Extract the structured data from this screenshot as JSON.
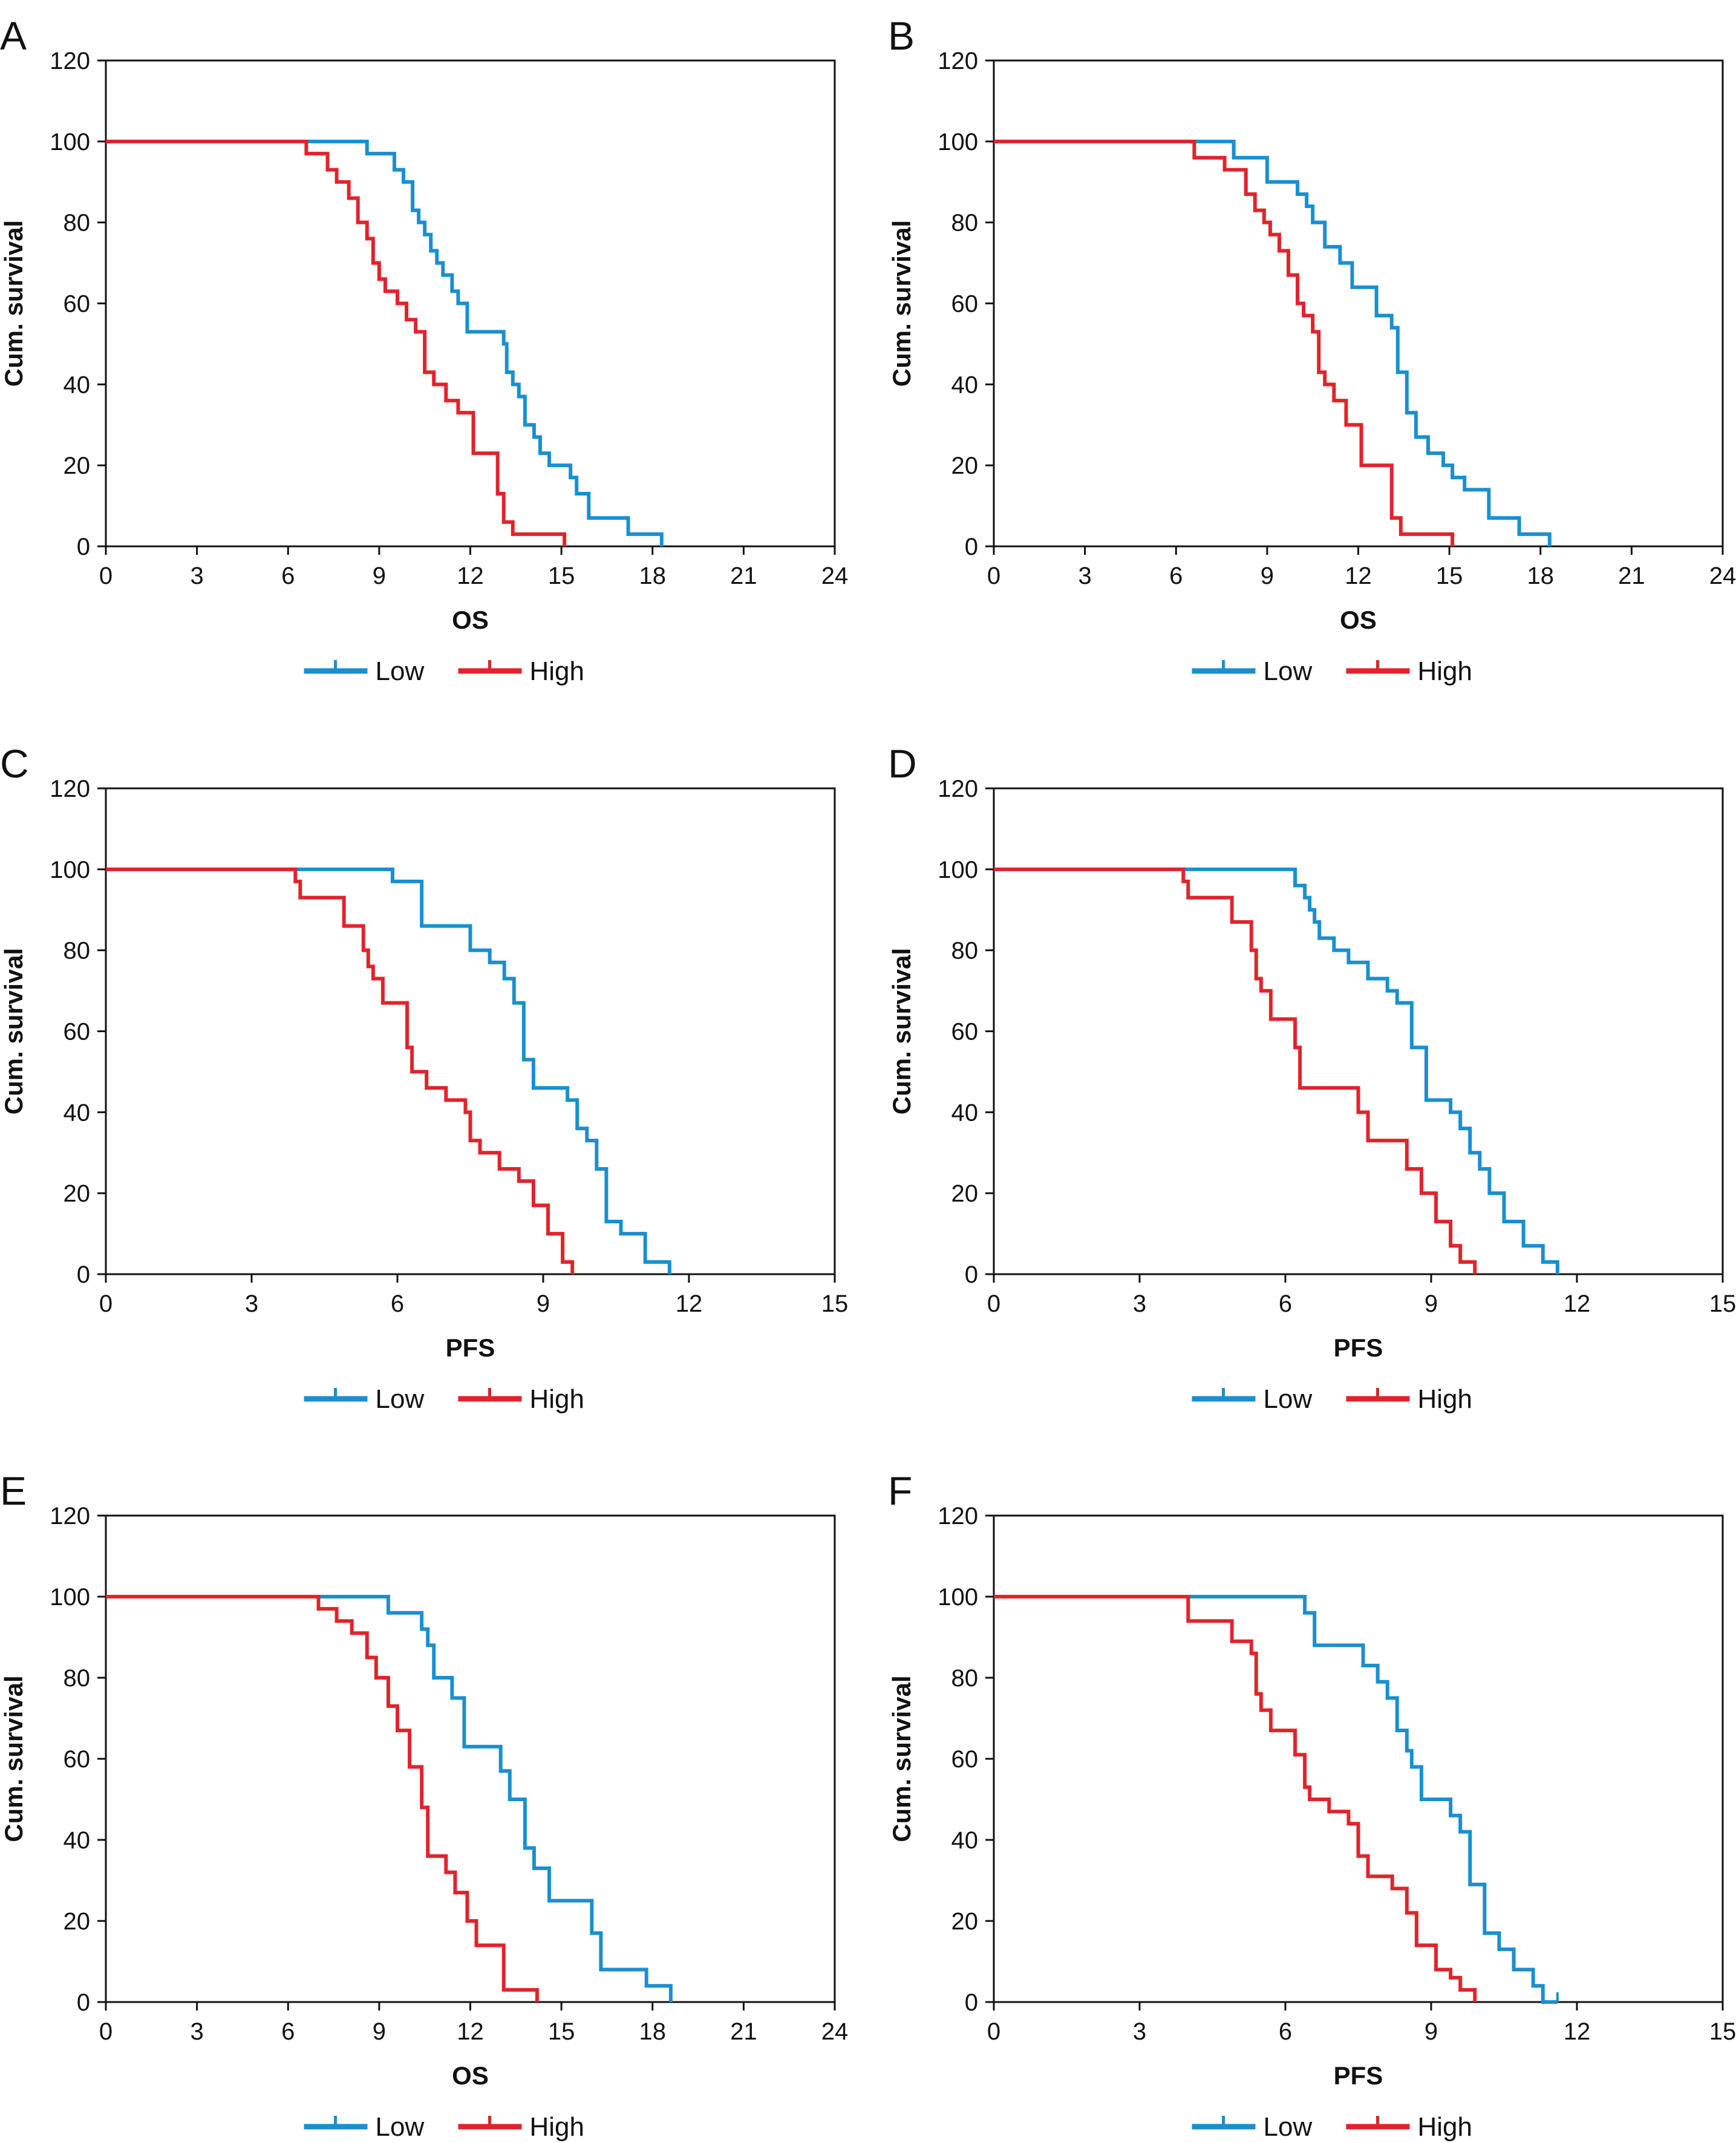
{
  "colors": {
    "low": "#1a8fd0",
    "high": "#e0242b",
    "axis": "#111111"
  },
  "chart_data": [
    {
      "panel": "A",
      "type": "line",
      "xlabel": "OS",
      "ylabel": "Cum. survival",
      "xlim": [
        0,
        24
      ],
      "ylim": [
        0,
        120
      ],
      "x_ticks": [
        0,
        3,
        6,
        9,
        12,
        15,
        18,
        21,
        24
      ],
      "y_ticks": [
        0,
        20,
        40,
        60,
        80,
        100,
        120
      ],
      "legend": "bottom-center",
      "series": [
        {
          "name": "Low",
          "color": "#1a8fd0",
          "x": [
            0,
            8.4,
            8.6,
            9.5,
            9.8,
            10.1,
            10.3,
            10.5,
            10.7,
            10.9,
            11.1,
            11.4,
            11.6,
            11.9,
            13.1,
            13.2,
            13.4,
            13.6,
            13.8,
            14.1,
            14.3,
            14.6,
            15.3,
            15.5,
            15.9,
            17.2,
            18.3
          ],
          "y": [
            100,
            100,
            97,
            93,
            90,
            83,
            80,
            77,
            73,
            70,
            67,
            63,
            60,
            53,
            50,
            43,
            40,
            37,
            30,
            27,
            23,
            20,
            17,
            13,
            7,
            3,
            0
          ]
        },
        {
          "name": "High",
          "color": "#e0242b",
          "x": [
            0,
            6.3,
            6.6,
            7.3,
            7.6,
            8.0,
            8.3,
            8.6,
            8.8,
            9.0,
            9.2,
            9.6,
            9.9,
            10.2,
            10.5,
            10.8,
            11.2,
            11.6,
            12.1,
            12.9,
            13.1,
            13.4,
            15.1
          ],
          "y": [
            100,
            100,
            97,
            93,
            90,
            86,
            80,
            76,
            70,
            66,
            63,
            60,
            56,
            53,
            43,
            40,
            36,
            33,
            23,
            13,
            6,
            3,
            0
          ]
        }
      ]
    },
    {
      "panel": "B",
      "type": "line",
      "xlabel": "OS",
      "ylabel": "Cum. survival",
      "xlim": [
        0,
        24
      ],
      "ylim": [
        0,
        120
      ],
      "x_ticks": [
        0,
        3,
        6,
        9,
        12,
        15,
        18,
        21,
        24
      ],
      "y_ticks": [
        0,
        20,
        40,
        60,
        80,
        100,
        120
      ],
      "legend": "bottom-center",
      "series": [
        {
          "name": "Low",
          "color": "#1a8fd0",
          "x": [
            0,
            7.6,
            7.9,
            9.0,
            9.3,
            10.0,
            10.3,
            10.5,
            10.9,
            11.4,
            11.8,
            12.6,
            13.1,
            13.3,
            13.6,
            13.9,
            14.3,
            14.8,
            15.1,
            15.5,
            16.3,
            17.3,
            18.3
          ],
          "y": [
            100,
            100,
            96,
            90,
            90,
            87,
            84,
            80,
            74,
            70,
            64,
            57,
            54,
            43,
            33,
            27,
            23,
            20,
            17,
            14,
            7,
            3,
            0
          ]
        },
        {
          "name": "High",
          "color": "#e0242b",
          "x": [
            0,
            6.3,
            6.6,
            7.6,
            8.3,
            8.6,
            8.9,
            9.1,
            9.4,
            9.7,
            10.0,
            10.2,
            10.5,
            10.7,
            10.9,
            11.2,
            11.6,
            12.1,
            13.1,
            13.4,
            15.1
          ],
          "y": [
            100,
            100,
            96,
            93,
            87,
            83,
            80,
            77,
            73,
            67,
            60,
            57,
            53,
            43,
            40,
            36,
            30,
            20,
            7,
            3,
            0
          ]
        }
      ]
    },
    {
      "panel": "C",
      "type": "line",
      "xlabel": "PFS",
      "ylabel": "Cum. survival",
      "xlim": [
        0,
        15
      ],
      "ylim": [
        0,
        120
      ],
      "x_ticks": [
        0,
        3,
        6,
        9,
        12,
        15
      ],
      "y_ticks": [
        0,
        20,
        40,
        60,
        80,
        100,
        120
      ],
      "legend": "bottom-center",
      "series": [
        {
          "name": "Low",
          "color": "#1a8fd0",
          "x": [
            0,
            5.6,
            5.9,
            6.5,
            7.5,
            7.9,
            8.2,
            8.4,
            8.6,
            8.8,
            9.5,
            9.7,
            9.9,
            10.1,
            10.3,
            10.6,
            11.1,
            11.6
          ],
          "y": [
            100,
            100,
            97,
            86,
            80,
            77,
            73,
            67,
            53,
            46,
            43,
            36,
            33,
            26,
            13,
            10,
            3,
            0
          ]
        },
        {
          "name": "High",
          "color": "#e0242b",
          "x": [
            0,
            3.8,
            3.9,
            4.0,
            4.9,
            5.3,
            5.4,
            5.5,
            5.7,
            6.2,
            6.3,
            6.6,
            7.0,
            7.4,
            7.5,
            7.7,
            8.1,
            8.5,
            8.8,
            9.1,
            9.4,
            9.6
          ],
          "y": [
            100,
            100,
            97,
            93,
            86,
            80,
            76,
            73,
            67,
            56,
            50,
            46,
            43,
            40,
            33,
            30,
            26,
            23,
            17,
            10,
            3,
            0
          ]
        }
      ]
    },
    {
      "panel": "D",
      "type": "line",
      "xlabel": "PFS",
      "ylabel": "Cum. survival",
      "xlim": [
        0,
        15
      ],
      "ylim": [
        0,
        120
      ],
      "x_ticks": [
        0,
        3,
        6,
        9,
        12,
        15
      ],
      "y_ticks": [
        0,
        20,
        40,
        60,
        80,
        100,
        120
      ],
      "legend": "bottom-center",
      "series": [
        {
          "name": "Low",
          "color": "#1a8fd0",
          "x": [
            0,
            5.7,
            6.2,
            6.4,
            6.5,
            6.6,
            6.7,
            7.0,
            7.3,
            7.7,
            8.1,
            8.3,
            8.6,
            8.9,
            9.4,
            9.6,
            9.8,
            10.0,
            10.2,
            10.5,
            10.9,
            11.3,
            11.6
          ],
          "y": [
            100,
            100,
            96,
            93,
            90,
            87,
            83,
            80,
            77,
            73,
            70,
            67,
            56,
            43,
            40,
            36,
            30,
            26,
            20,
            13,
            7,
            3,
            0
          ]
        },
        {
          "name": "High",
          "color": "#e0242b",
          "x": [
            0,
            3.8,
            3.9,
            4.0,
            4.9,
            5.3,
            5.4,
            5.5,
            5.7,
            6.2,
            6.3,
            6.6,
            7.5,
            7.7,
            8.5,
            8.8,
            9.1,
            9.4,
            9.6,
            9.9
          ],
          "y": [
            100,
            100,
            97,
            93,
            87,
            80,
            73,
            70,
            63,
            56,
            46,
            46,
            40,
            33,
            26,
            20,
            13,
            7,
            3,
            0
          ]
        }
      ]
    },
    {
      "panel": "E",
      "type": "line",
      "xlabel": "OS",
      "ylabel": "Cum. survival",
      "xlim": [
        0,
        24
      ],
      "ylim": [
        0,
        120
      ],
      "x_ticks": [
        0,
        3,
        6,
        9,
        12,
        15,
        18,
        21,
        24
      ],
      "y_ticks": [
        0,
        20,
        40,
        60,
        80,
        100,
        120
      ],
      "legend": "bottom-center",
      "series": [
        {
          "name": "Low",
          "color": "#1a8fd0",
          "x": [
            0,
            8.6,
            9.3,
            10.4,
            10.6,
            10.8,
            11.4,
            11.8,
            13.0,
            13.3,
            13.8,
            14.1,
            14.6,
            16.0,
            16.3,
            17.8,
            18.6
          ],
          "y": [
            100,
            100,
            96,
            92,
            88,
            80,
            75,
            63,
            57,
            50,
            38,
            33,
            25,
            17,
            8,
            4,
            0
          ]
        },
        {
          "name": "High",
          "color": "#e0242b",
          "x": [
            0,
            6.6,
            7.0,
            7.6,
            8.1,
            8.6,
            8.9,
            9.3,
            9.6,
            10.0,
            10.4,
            10.6,
            11.2,
            11.5,
            11.9,
            12.2,
            13.1,
            14.2
          ],
          "y": [
            100,
            100,
            97,
            94,
            91,
            85,
            80,
            73,
            67,
            58,
            48,
            36,
            32,
            27,
            20,
            14,
            3,
            0
          ]
        }
      ]
    },
    {
      "panel": "F",
      "type": "line",
      "xlabel": "PFS",
      "ylabel": "Cum. survival",
      "xlim": [
        0,
        15
      ],
      "ylim": [
        0,
        120
      ],
      "x_ticks": [
        0,
        3,
        6,
        9,
        12,
        15
      ],
      "y_ticks": [
        0,
        20,
        40,
        60,
        80,
        100,
        120
      ],
      "legend": "bottom-center",
      "series": [
        {
          "name": "Low",
          "color": "#1a8fd0",
          "x": [
            0,
            6.3,
            6.4,
            6.6,
            7.6,
            7.9,
            8.1,
            8.3,
            8.5,
            8.6,
            8.8,
            9.4,
            9.6,
            9.8,
            10.1,
            10.4,
            10.7,
            11.1,
            11.3,
            11.6
          ],
          "y": [
            100,
            100,
            96,
            88,
            83,
            79,
            75,
            67,
            62,
            58,
            50,
            46,
            42,
            29,
            17,
            13,
            8,
            4,
            0,
            0
          ]
        },
        {
          "name": "High",
          "color": "#e0242b",
          "x": [
            0,
            3.8,
            4.0,
            4.9,
            5.3,
            5.4,
            5.5,
            5.7,
            6.2,
            6.4,
            6.5,
            6.9,
            7.3,
            7.5,
            7.7,
            8.2,
            8.5,
            8.7,
            9.1,
            9.4,
            9.6,
            9.9
          ],
          "y": [
            100,
            100,
            94,
            89,
            86,
            76,
            72,
            67,
            61,
            53,
            50,
            47,
            44,
            36,
            31,
            28,
            22,
            14,
            8,
            6,
            3,
            0
          ]
        }
      ]
    }
  ]
}
